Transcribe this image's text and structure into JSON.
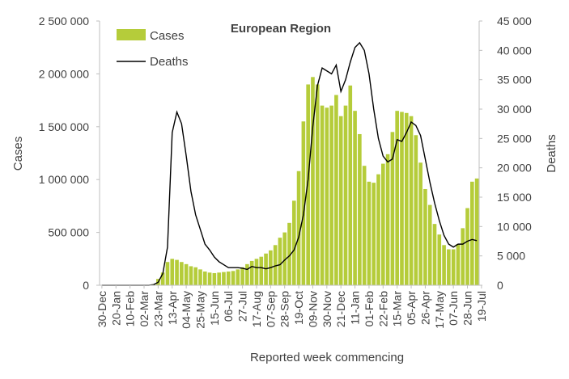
{
  "chart_data": {
    "type": "bar+line",
    "title": "European Region",
    "xlabel": "Reported week commencing",
    "ylabel_left": "Cases",
    "ylabel_right": "Deaths",
    "ylim_left": [
      0,
      2500000
    ],
    "ylim_right": [
      0,
      45000
    ],
    "yticks_left": [
      "0",
      "500 000",
      "1 000 000",
      "1 500 000",
      "2 000 000",
      "2 500 000"
    ],
    "yticks_right": [
      "0",
      "5 000",
      "10 000",
      "15 000",
      "20 000",
      "25 000",
      "30 000",
      "35 000",
      "40 000",
      "45 000"
    ],
    "x_tick_labels": [
      "30-Dec",
      "20-Jan",
      "10-Feb",
      "02-Mar",
      "23-Mar",
      "13-Apr",
      "04-May",
      "25-May",
      "15-Jun",
      "06-Jul",
      "27-Jul",
      "17-Aug",
      "07-Sep",
      "28-Sep",
      "19-Oct",
      "09-Nov",
      "30-Nov",
      "21-Dec",
      "11-Jan",
      "01-Feb",
      "22-Feb",
      "15-Mar",
      "05-Apr",
      "26-Apr",
      "17-May",
      "07-Jun",
      "28-Jun",
      "19-Jul"
    ],
    "grid": false,
    "legend_position": "top-left",
    "bar_color": "#b5cc3a",
    "line_color": "#000000",
    "series": [
      {
        "name": "Cases",
        "type": "bar",
        "axis": "left",
        "values": [
          0,
          0,
          0,
          0,
          0,
          0,
          0,
          0,
          0,
          0,
          2000,
          10000,
          60000,
          120000,
          220000,
          250000,
          240000,
          220000,
          200000,
          180000,
          170000,
          150000,
          130000,
          120000,
          115000,
          120000,
          125000,
          130000,
          135000,
          150000,
          170000,
          200000,
          230000,
          250000,
          270000,
          300000,
          330000,
          380000,
          450000,
          500000,
          590000,
          800000,
          1080000,
          1550000,
          1900000,
          1970000,
          1900000,
          1700000,
          1680000,
          1700000,
          1800000,
          1600000,
          1700000,
          1890000,
          1650000,
          1430000,
          1130000,
          980000,
          970000,
          1050000,
          1150000,
          1240000,
          1450000,
          1650000,
          1640000,
          1630000,
          1600000,
          1420000,
          1160000,
          910000,
          760000,
          580000,
          480000,
          380000,
          340000,
          340000,
          390000,
          540000,
          730000,
          980000,
          1010000
        ]
      },
      {
        "name": "Deaths",
        "type": "line",
        "axis": "right",
        "values": [
          0,
          0,
          0,
          0,
          0,
          0,
          0,
          0,
          0,
          0,
          0,
          100,
          500,
          2000,
          6500,
          26000,
          29500,
          27500,
          22000,
          16000,
          12000,
          9500,
          7000,
          6000,
          4800,
          4000,
          3500,
          3000,
          3000,
          3000,
          2900,
          2700,
          3200,
          3000,
          3000,
          2800,
          3000,
          3300,
          3500,
          4300,
          5000,
          6000,
          8200,
          12000,
          18000,
          27000,
          34000,
          37000,
          36500,
          36000,
          37500,
          33000,
          35000,
          38000,
          40500,
          41300,
          40000,
          36000,
          30000,
          25000,
          22000,
          21000,
          21500,
          24800,
          24500,
          26000,
          27800,
          27200,
          25500,
          21500,
          17500,
          14000,
          11000,
          8500,
          7000,
          6500,
          7000,
          7000,
          7500,
          7800,
          7600
        ]
      }
    ]
  }
}
